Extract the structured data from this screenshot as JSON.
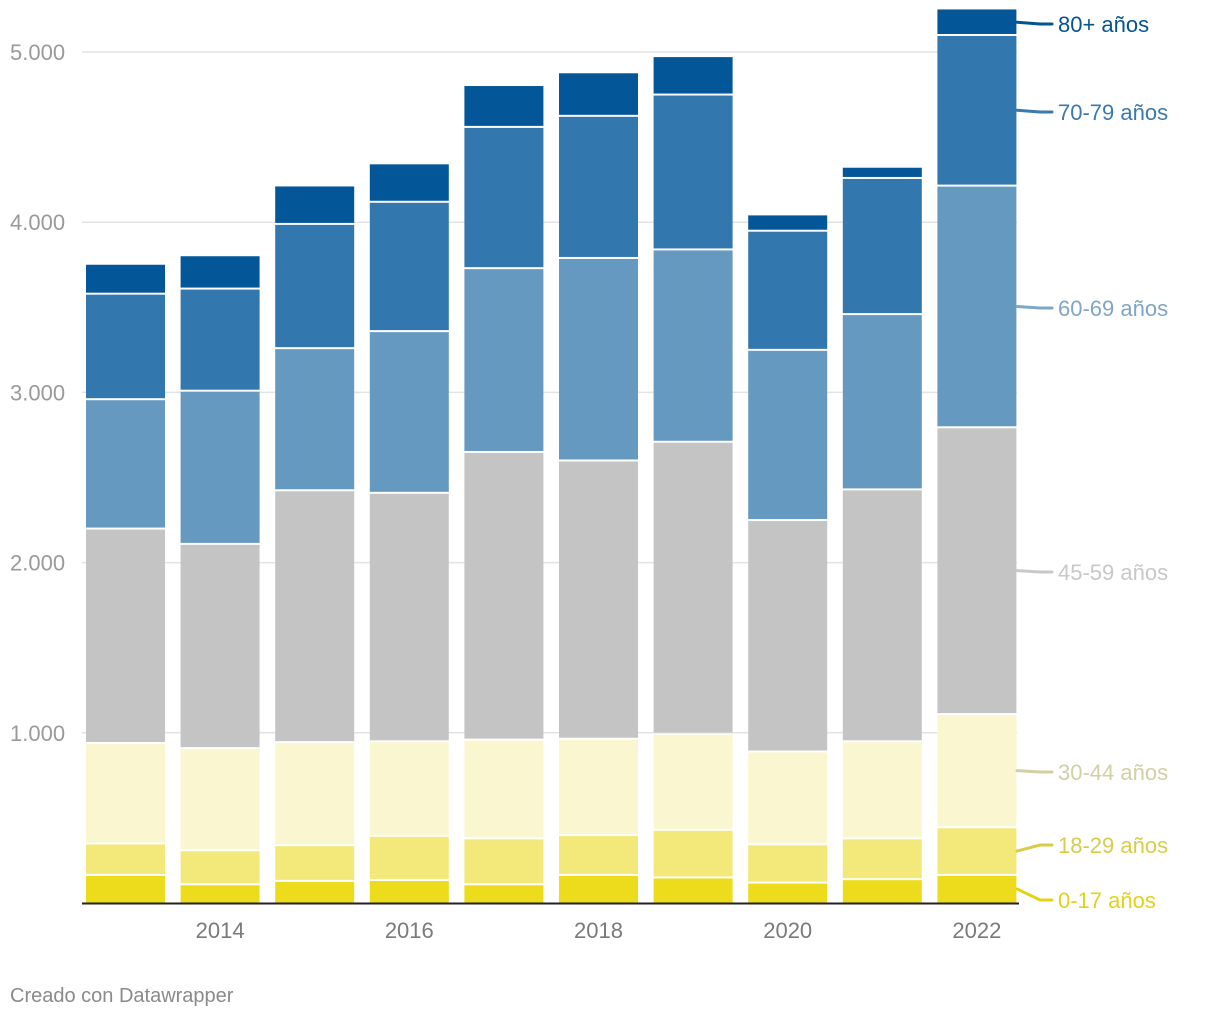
{
  "chart_data": {
    "type": "bar",
    "stacked": true,
    "categories": [
      "2013",
      "2014",
      "2015",
      "2016",
      "2017",
      "2018",
      "2019",
      "2020",
      "2021",
      "2022"
    ],
    "x_tick_labels": [
      "2014",
      "2016",
      "2018",
      "2020",
      "2022"
    ],
    "y_ticks": [
      1000,
      2000,
      3000,
      4000,
      5000
    ],
    "y_tick_labels": [
      "1.000",
      "2.000",
      "3.000",
      "4.000",
      "5.000"
    ],
    "ylim": [
      0,
      5300
    ],
    "title": "",
    "xlabel": "",
    "ylabel": "",
    "legend_placement": "right",
    "series": [
      {
        "name": "0-17 años",
        "color": "#ecdc1c",
        "label_color": "#e3d21a",
        "values": [
          165,
          110,
          130,
          135,
          110,
          165,
          150,
          120,
          140,
          165
        ]
      },
      {
        "name": "18-29 años",
        "color": "#f3e97a",
        "label_color": "#d9cc4a",
        "values": [
          185,
          200,
          210,
          260,
          270,
          235,
          280,
          225,
          240,
          280
        ]
      },
      {
        "name": "30-44 años",
        "color": "#faf6cf",
        "label_color": "#d2cfa4",
        "values": [
          590,
          600,
          605,
          555,
          580,
          565,
          565,
          545,
          570,
          665
        ]
      },
      {
        "name": "45-59 años",
        "color": "#c4c4c4",
        "label_color": "#c8c8c8",
        "values": [
          1260,
          1200,
          1480,
          1460,
          1690,
          1635,
          1715,
          1360,
          1480,
          1685
        ]
      },
      {
        "name": "60-69 años",
        "color": "#6699c0",
        "label_color": "#7fa6c8",
        "values": [
          760,
          900,
          835,
          950,
          1080,
          1190,
          1130,
          1000,
          1030,
          1420
        ]
      },
      {
        "name": "70-79 años",
        "color": "#3277ad",
        "label_color": "#3a79ae",
        "values": [
          620,
          600,
          730,
          760,
          830,
          835,
          910,
          700,
          800,
          885
        ]
      },
      {
        "name": "80+ años",
        "color": "#035697",
        "label_color": "#04548f",
        "values": [
          170,
          190,
          220,
          220,
          240,
          250,
          220,
          90,
          60,
          150
        ]
      }
    ]
  },
  "footer": {
    "credit": "Creado con Datawrapper"
  }
}
